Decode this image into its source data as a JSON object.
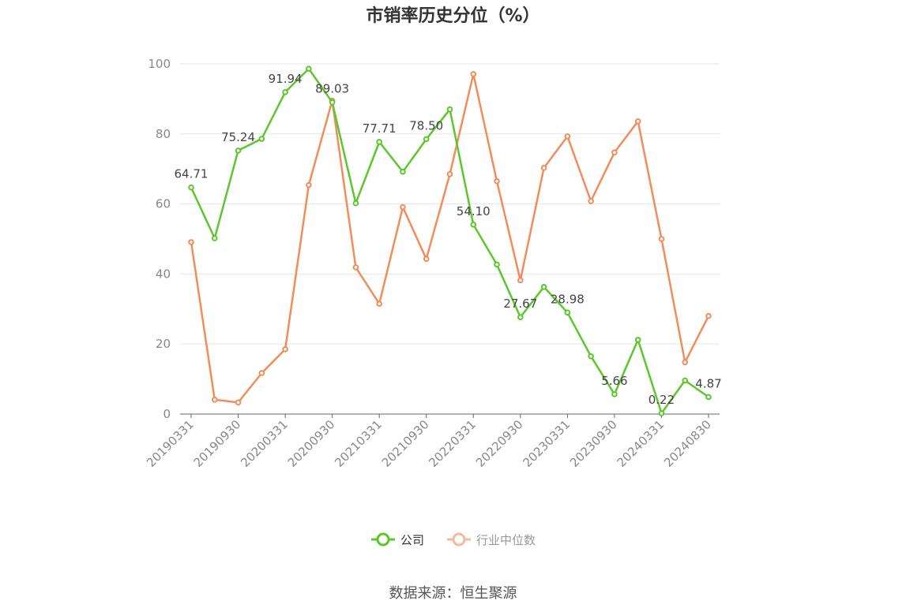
{
  "title": "市销率历史分位（%）",
  "source": "数据来源：恒生聚源",
  "colors": {
    "company": "#5cc62d",
    "industry": "#f28c5b",
    "industry_legend": "#f6b99a",
    "grid": "#e6e6ea",
    "axis": "#666666",
    "tick_label": "#888888",
    "data_label": "#444444"
  },
  "chart_data": {
    "type": "line",
    "title": "市销率历史分位（%）",
    "xlabel": "",
    "ylabel": "",
    "ylim": [
      0,
      100
    ],
    "yticks": [
      0,
      20,
      40,
      60,
      80,
      100
    ],
    "grid": true,
    "legend_position": "bottom-center",
    "x": [
      "20190331",
      "20190630",
      "20190930",
      "20191231",
      "20200331",
      "20200630",
      "20200930",
      "20201231",
      "20210331",
      "20210630",
      "20210930",
      "20211231",
      "20220331",
      "20220630",
      "20220930",
      "20221231",
      "20230331",
      "20230630",
      "20230930",
      "20231231",
      "20240331",
      "20240630",
      "20240830"
    ],
    "x_tick_labels": [
      "20190331",
      "20190930",
      "20200331",
      "20200930",
      "20210331",
      "20210930",
      "20220331",
      "20220930",
      "20230331",
      "20230930",
      "20240331",
      "20240830"
    ],
    "series": [
      {
        "name": "公司",
        "color": "#5cc62d",
        "values": [
          64.71,
          50.2,
          75.24,
          78.6,
          91.94,
          98.6,
          89.03,
          60.2,
          77.71,
          69.2,
          78.5,
          87.0,
          54.1,
          42.7,
          27.67,
          36.3,
          28.98,
          16.5,
          5.66,
          21.2,
          0.22,
          9.6,
          4.87
        ],
        "labels": {
          "0": "64.71",
          "2": "75.24",
          "4": "91.94",
          "6": "89.03",
          "8": "77.71",
          "10": "78.50",
          "12": "54.10",
          "14": "27.67",
          "16": "28.98",
          "18": "5.66",
          "20": "0.22",
          "22": "4.87"
        }
      },
      {
        "name": "行业中位数",
        "color": "#f28c5b",
        "values": [
          49.1,
          4.1,
          3.3,
          11.7,
          18.5,
          65.4,
          89.5,
          41.9,
          31.5,
          59.1,
          44.3,
          68.5,
          97.1,
          66.5,
          38.2,
          70.3,
          79.3,
          60.8,
          74.7,
          83.6,
          50.0,
          14.8,
          28.0
        ]
      }
    ]
  },
  "legend": [
    {
      "name": "公司"
    },
    {
      "name": "行业中位数"
    }
  ]
}
